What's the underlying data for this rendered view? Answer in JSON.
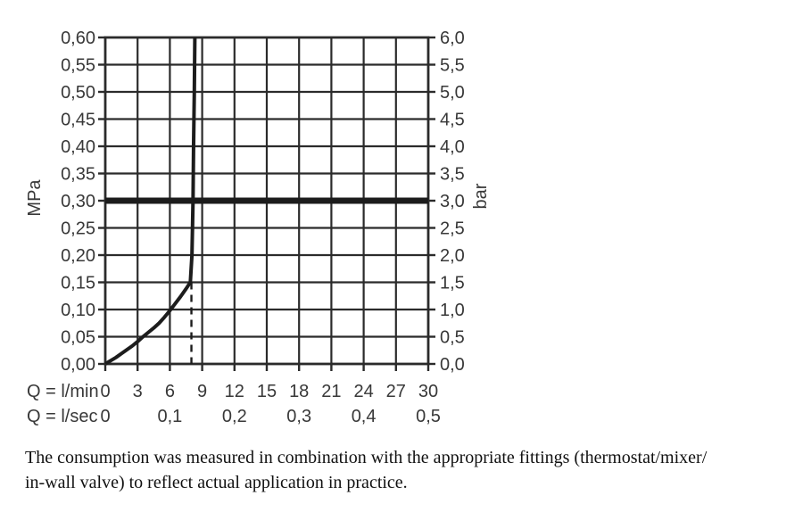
{
  "caption": {
    "line1": "The consumption was measured in combination with the appropriate fittings (thermostat/mixer/",
    "line2": "in-wall valve) to reflect actual application in practice."
  },
  "chart_data": {
    "type": "line",
    "grid": {
      "x_step_lmin": 3,
      "y_step_mpa": 0.05
    },
    "x_axis": {
      "row1_label": "Q = l/min",
      "row2_label": "Q = l/sec",
      "row1_ticks": [
        "0",
        "3",
        "6",
        "9",
        "12",
        "15",
        "18",
        "21",
        "24",
        "27",
        "30"
      ],
      "row1_values": [
        0,
        3,
        6,
        9,
        12,
        15,
        18,
        21,
        24,
        27,
        30
      ],
      "row2_ticks": [
        {
          "text": "0",
          "lmin": 0
        },
        {
          "text": "0,1",
          "lmin": 6
        },
        {
          "text": "0,2",
          "lmin": 12
        },
        {
          "text": "0,3",
          "lmin": 18
        },
        {
          "text": "0,4",
          "lmin": 24
        },
        {
          "text": "0,5",
          "lmin": 30
        }
      ],
      "range": [
        0,
        30
      ]
    },
    "y_axis_left": {
      "unit": "MPa",
      "ticks": [
        "0,00",
        "0,05",
        "0,10",
        "0,15",
        "0,20",
        "0,25",
        "0,30",
        "0,35",
        "0,40",
        "0,45",
        "0,50",
        "0,55",
        "0,60"
      ],
      "values": [
        0,
        0.05,
        0.1,
        0.15,
        0.2,
        0.25,
        0.3,
        0.35,
        0.4,
        0.45,
        0.5,
        0.55,
        0.6
      ],
      "range": [
        0,
        0.6
      ]
    },
    "y_axis_right": {
      "unit": "bar",
      "ticks": [
        "0,0",
        "0,5",
        "1,0",
        "1,5",
        "2,0",
        "2,5",
        "3,0",
        "3,5",
        "4,0",
        "4,5",
        "5,0",
        "5,5",
        "6,0"
      ],
      "values": [
        0,
        0.5,
        1.0,
        1.5,
        2.0,
        2.5,
        3.0,
        3.5,
        4.0,
        4.5,
        5.0,
        5.5,
        6.0
      ],
      "range": [
        0,
        6
      ]
    },
    "series": [
      {
        "name": "flow-curve",
        "points_lmin_mpa": [
          [
            0,
            0
          ],
          [
            0.5,
            0.006
          ],
          [
            1,
            0.012
          ],
          [
            1.5,
            0.019
          ],
          [
            2,
            0.026
          ],
          [
            2.5,
            0.033
          ],
          [
            3,
            0.041
          ],
          [
            3.5,
            0.05
          ],
          [
            4,
            0.058
          ],
          [
            4.5,
            0.066
          ],
          [
            5,
            0.075
          ],
          [
            5.5,
            0.086
          ],
          [
            6,
            0.098
          ],
          [
            6.5,
            0.111
          ],
          [
            7,
            0.124
          ],
          [
            7.5,
            0.138
          ],
          [
            7.9,
            0.15
          ],
          [
            8.05,
            0.2
          ],
          [
            8.15,
            0.3
          ],
          [
            8.2,
            0.4
          ],
          [
            8.27,
            0.5
          ],
          [
            8.32,
            0.6
          ]
        ]
      }
    ],
    "reference_lines": {
      "pressure_line": {
        "mpa": 0.3,
        "bar": 3.0,
        "style": "thick-solid"
      },
      "flow_marker": {
        "lmin": 8.0,
        "mpa_top": 0.15,
        "style": "dashed-vertical"
      }
    },
    "colors": {
      "curve": "#1c1c1c",
      "grid": "#2b2b2b",
      "label": "#383838",
      "background": "#ffffff"
    }
  }
}
